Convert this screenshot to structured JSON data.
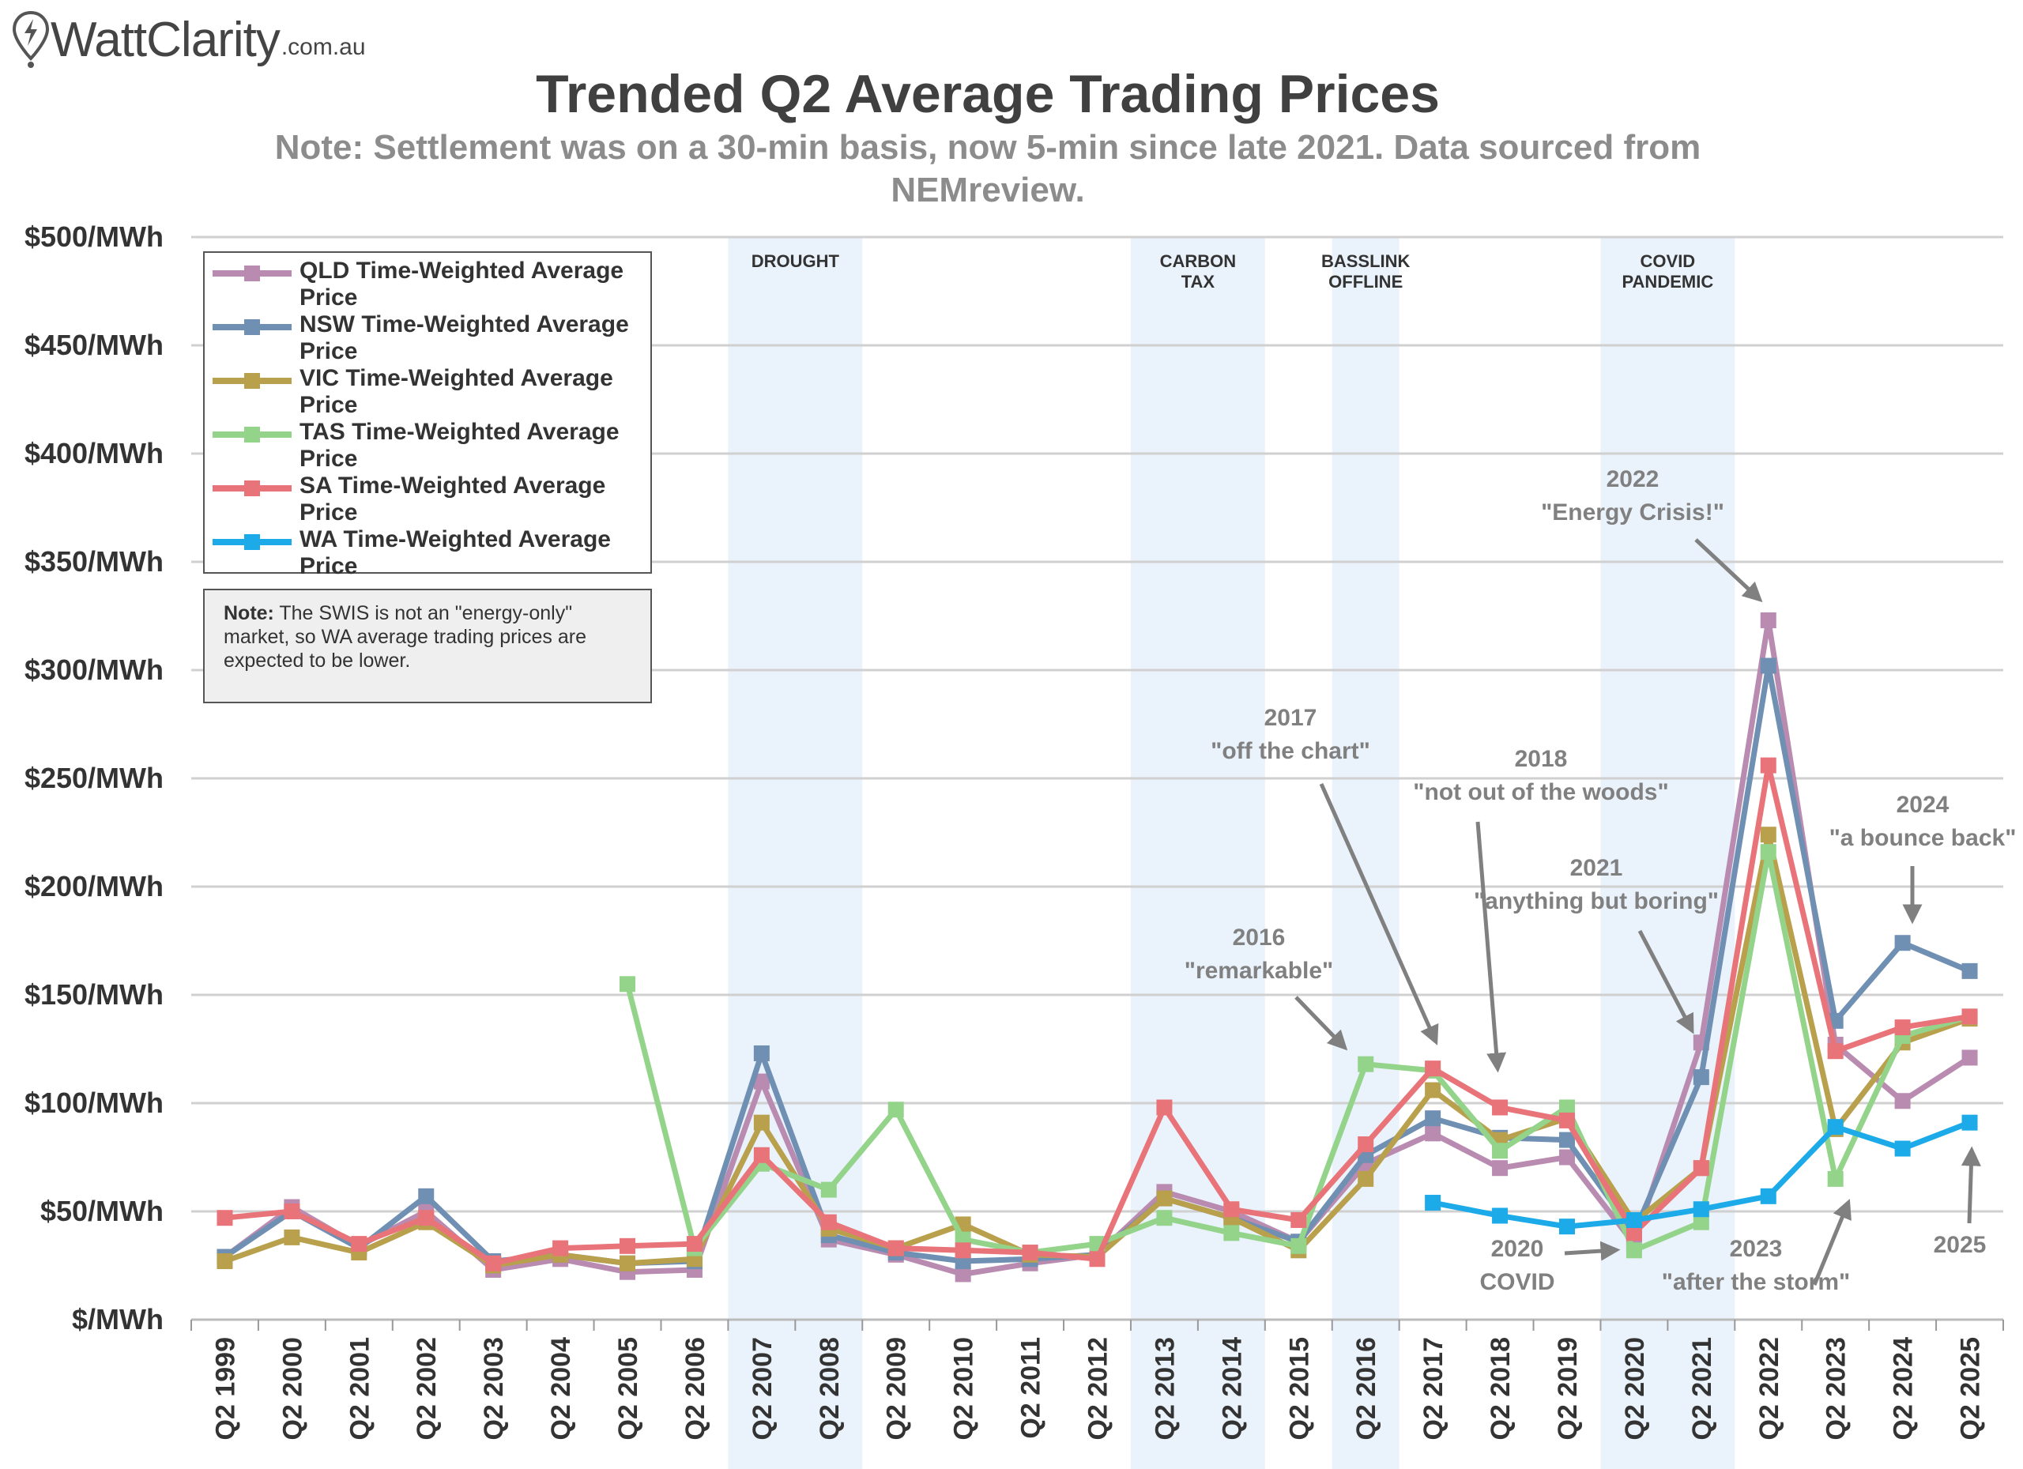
{
  "logo": {
    "brand": "WattClarity",
    "domain": ".com.au"
  },
  "chart_data": {
    "type": "line",
    "title": "Trended Q2 Average Trading Prices",
    "subtitle": "Note: Settlement was on a 30-min basis, now 5-min since late 2021. Data sourced from NEMreview.",
    "xlabel": "",
    "ylabel": "",
    "ylim": [
      0,
      500
    ],
    "y_ticks": [
      0,
      50,
      100,
      150,
      200,
      250,
      300,
      350,
      400,
      450,
      500
    ],
    "y_tick_labels": [
      "$/MWh",
      "$50/MWh",
      "$100/MWh",
      "$150/MWh",
      "$200/MWh",
      "$250/MWh",
      "$300/MWh",
      "$350/MWh",
      "$400/MWh",
      "$450/MWh",
      "$500/MWh"
    ],
    "grid": true,
    "legend_position": "top-left",
    "categories": [
      "Q2 1999",
      "Q2 2000",
      "Q2 2001",
      "Q2 2002",
      "Q2 2003",
      "Q2 2004",
      "Q2 2005",
      "Q2 2006",
      "Q2 2007",
      "Q2 2008",
      "Q2 2009",
      "Q2 2010",
      "Q2 2011",
      "Q2 2012",
      "Q2 2013",
      "Q2 2014",
      "Q2 2015",
      "Q2 2016",
      "Q2 2017",
      "Q2 2018",
      "Q2 2019",
      "Q2 2020",
      "Q2 2021",
      "Q2 2022",
      "Q2 2023",
      "Q2 2024",
      "Q2 2025"
    ],
    "series": [
      {
        "name": "QLD Time-Weighted Average Price",
        "color": "#b98bb0",
        "values": [
          29,
          52,
          34,
          50,
          23,
          28,
          22,
          23,
          110,
          37,
          30,
          21,
          26,
          30,
          59,
          50,
          36,
          72,
          86,
          70,
          75,
          35,
          128,
          323,
          127,
          101,
          121
        ]
      },
      {
        "name": "NSW Time-Weighted Average Price",
        "color": "#6f8fb3",
        "values": [
          29,
          50,
          33,
          57,
          27,
          30,
          26,
          27,
          123,
          39,
          31,
          27,
          28,
          30,
          56,
          47,
          36,
          76,
          93,
          84,
          83,
          40,
          112,
          302,
          138,
          174,
          161
        ]
      },
      {
        "name": "VIC Time-Weighted Average Price",
        "color": "#b8a04c",
        "values": [
          27,
          38,
          31,
          45,
          25,
          30,
          26,
          28,
          91,
          42,
          33,
          44,
          30,
          29,
          56,
          47,
          32,
          65,
          106,
          83,
          93,
          45,
          70,
          224,
          88,
          128,
          139
        ]
      },
      {
        "name": "TAS Time-Weighted Average Price",
        "color": "#93d48a",
        "values": [
          null,
          null,
          null,
          null,
          null,
          null,
          155,
          33,
          72,
          60,
          97,
          37,
          31,
          35,
          47,
          40,
          34,
          118,
          115,
          78,
          98,
          32,
          45,
          216,
          65,
          131,
          140
        ]
      },
      {
        "name": "SA Time-Weighted Average Price",
        "color": "#e8747a",
        "values": [
          47,
          50,
          35,
          47,
          26,
          33,
          34,
          35,
          76,
          45,
          33,
          32,
          31,
          28,
          98,
          51,
          46,
          81,
          116,
          98,
          92,
          40,
          70,
          256,
          124,
          135,
          140
        ]
      },
      {
        "name": "WA Time-Weighted Average Price",
        "color": "#1caae8",
        "values": [
          null,
          null,
          null,
          null,
          null,
          null,
          null,
          null,
          null,
          null,
          null,
          null,
          null,
          null,
          null,
          null,
          null,
          null,
          54,
          48,
          43,
          46,
          51,
          57,
          89,
          79,
          91
        ]
      }
    ],
    "shaded_periods": [
      {
        "label": "DROUGHT",
        "from": "Q2 2007",
        "to": "Q2 2008"
      },
      {
        "label": "CARBON TAX",
        "from": "Q2 2013",
        "to": "Q2 2014"
      },
      {
        "label": "BASSLINK OFFLINE",
        "from": "Q2 2016",
        "to": "Q2 2016"
      },
      {
        "label": "COVID PANDEMIC",
        "from": "Q2 2020",
        "to": "Q2 2021"
      }
    ],
    "annotations": [
      {
        "line1": "2016",
        "line2": "\"remarkable\""
      },
      {
        "line1": "2017",
        "line2": "\"off the chart\""
      },
      {
        "line1": "2018",
        "line2": "\"not out of the woods\""
      },
      {
        "line1": "2021",
        "line2": "\"anything but boring\""
      },
      {
        "line1": "2022",
        "line2": "\"Energy Crisis!\""
      },
      {
        "line1": "2024",
        "line2": "\"a bounce back\""
      },
      {
        "line1": "2020",
        "line2": "COVID"
      },
      {
        "line1": "2023",
        "line2": "\"after the storm\""
      },
      {
        "line1": "2025",
        "line2": ""
      }
    ]
  },
  "legend": {
    "items": [
      {
        "label": "QLD Time-Weighted Average Price",
        "color": "#b98bb0"
      },
      {
        "label": "NSW Time-Weighted Average Price",
        "color": "#6f8fb3"
      },
      {
        "label": "VIC Time-Weighted Average Price",
        "color": "#b8a04c"
      },
      {
        "label": "TAS Time-Weighted Average Price",
        "color": "#93d48a"
      },
      {
        "label": "SA Time-Weighted Average Price",
        "color": "#e8747a"
      },
      {
        "label": "WA Time-Weighted Average Price",
        "color": "#1caae8"
      }
    ]
  },
  "note": {
    "bold": "Note:",
    "text": " The SWIS is not an \"energy-only\" market, so WA average trading prices are expected to be lower."
  }
}
